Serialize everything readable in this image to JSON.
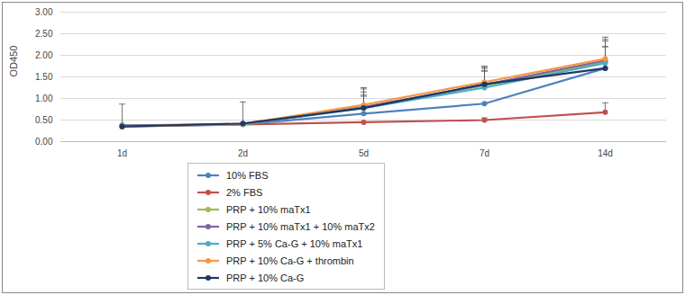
{
  "chart_data": {
    "type": "line",
    "y_label": "OD450",
    "categories": [
      "1d",
      "2d",
      "5d",
      "7d",
      "14d"
    ],
    "ylim": [
      0,
      3
    ],
    "yticks": [
      {
        "value": 0,
        "label": "0.00"
      },
      {
        "value": 0.5,
        "label": "0.50"
      },
      {
        "value": 1,
        "label": "1.00"
      },
      {
        "value": 1.5,
        "label": "1.50"
      },
      {
        "value": 2,
        "label": "2.00"
      },
      {
        "value": 2.5,
        "label": "2.50"
      },
      {
        "value": 3,
        "label": "3.00"
      }
    ],
    "grid": true,
    "marker": "circle",
    "legend": "bottom",
    "series": [
      {
        "name": "10% FBS",
        "color": "#4f81bd",
        "values": [
          0.38,
          0.4,
          0.65,
          0.88,
          1.7
        ],
        "errors": [
          0.49,
          0.52,
          null,
          null,
          null
        ]
      },
      {
        "name": "2% FBS",
        "color": "#c0504d",
        "values": [
          0.37,
          0.4,
          0.45,
          0.5,
          0.68
        ],
        "errors": [
          null,
          null,
          null,
          0.05,
          0.22
        ]
      },
      {
        "name": "PRP + 10% maTx1",
        "color": "#9bbb59",
        "values": [
          0.35,
          0.4,
          0.8,
          1.3,
          1.85
        ],
        "errors": [
          null,
          null,
          0.42,
          0.42,
          0.52
        ]
      },
      {
        "name": "PRP + 10% maTx1 + 10% maTx2",
        "color": "#8064a2",
        "values": [
          0.35,
          0.4,
          0.8,
          1.32,
          1.88
        ],
        "errors": [
          null,
          null,
          0.35,
          0.38,
          0.45
        ]
      },
      {
        "name": "PRP + 5% Ca-G + 10% maTx1",
        "color": "#4bacc6",
        "values": [
          0.36,
          0.4,
          0.78,
          1.25,
          1.82
        ],
        "errors": [
          null,
          null,
          0.3,
          0.4,
          0.38
        ]
      },
      {
        "name": "PRP + 10% Ca-G + thrombin",
        "color": "#f79646",
        "values": [
          0.35,
          0.41,
          0.85,
          1.38,
          1.92
        ],
        "errors": [
          null,
          null,
          0.4,
          0.37,
          0.5
        ]
      },
      {
        "name": "PRP + 10% Ca-G",
        "color": "#1f3864",
        "values": [
          0.35,
          0.42,
          0.78,
          1.33,
          1.7
        ],
        "errors": [
          null,
          null,
          0.27,
          0.3,
          0.5
        ]
      }
    ]
  }
}
